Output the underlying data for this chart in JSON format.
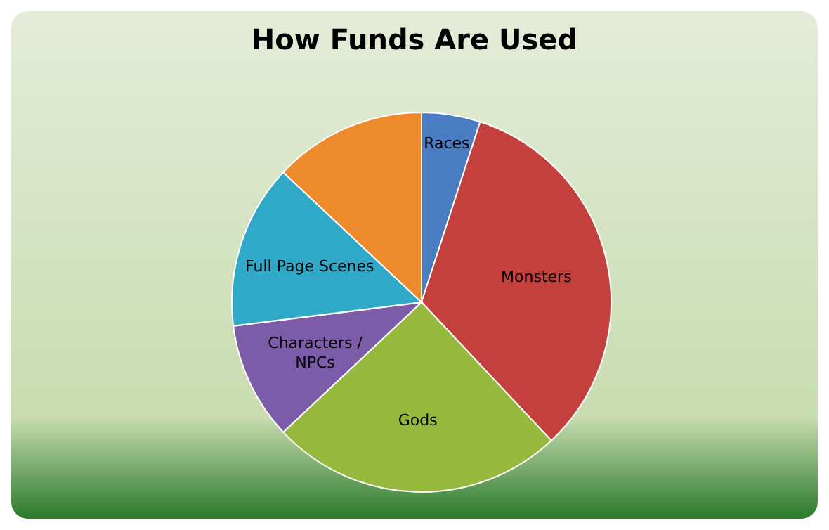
{
  "chart_data": {
    "type": "pie",
    "title": "How Funds Are Used",
    "categories": [
      "Races",
      "Monsters",
      "Gods",
      "Characters / NPCs",
      "Full Page Scenes",
      null
    ],
    "values": [
      5,
      33,
      25,
      10,
      14,
      13
    ],
    "colors": [
      "#4a7cc4",
      "#c4403c",
      "#96b83c",
      "#7c5ca8",
      "#30a8c8",
      "#ec8a2c"
    ],
    "legend": false
  }
}
